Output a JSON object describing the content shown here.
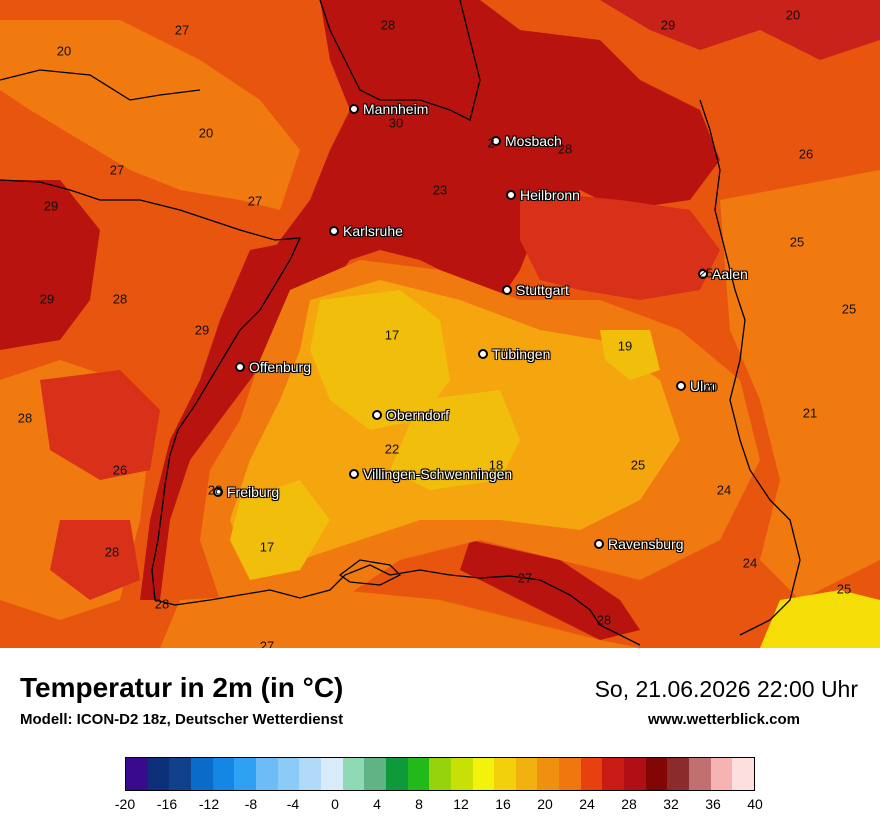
{
  "header": {
    "title": "Temperatur in 2m (in °C)",
    "subtitle": "Modell: ICON-D2 18z, Deutscher Wetterdienst",
    "datetime": "So, 21.06.2026 22:00 Uhr",
    "website": "www.wetterblick.com"
  },
  "colors": {
    "dark_red": "#b8130e",
    "red": "#d9301a",
    "red_orange": "#e8550f",
    "orange": "#f07a10",
    "light_orange": "#f5a50e",
    "yellow_orange": "#f2be0c",
    "yellow": "#f5dd07"
  },
  "cities": [
    {
      "name": "Mannheim"
    },
    {
      "name": "Mosbach"
    },
    {
      "name": "Heilbronn"
    },
    {
      "name": "Karlsruhe"
    },
    {
      "name": "Stuttgart"
    },
    {
      "name": "Aalen"
    },
    {
      "name": "Tübingen"
    },
    {
      "name": "Offenburg"
    },
    {
      "name": "Ulm"
    },
    {
      "name": "Oberndorf"
    },
    {
      "name": "Villingen-Schwenningen"
    },
    {
      "name": "Freiburg"
    },
    {
      "name": "Ravensburg"
    }
  ],
  "values": [
    "28",
    "27",
    "20",
    "29",
    "20",
    "20",
    "30",
    "2",
    "28",
    "26",
    "27",
    "23",
    "27",
    "29",
    "25",
    "25",
    "29",
    "28",
    "29",
    "17",
    "25",
    "19",
    "20",
    "28",
    "21",
    "26",
    "22",
    "18",
    "25",
    "28",
    "24",
    "28",
    "17",
    "24",
    "27",
    "25",
    "28",
    "28",
    "27"
  ],
  "legend": {
    "colors": [
      "#3a0a8c",
      "#0e2f7a",
      "#11418c",
      "#0a6bc8",
      "#1487e6",
      "#2ea1f5",
      "#6dbcf7",
      "#8ccaf8",
      "#b1daf9",
      "#d7ebfb",
      "#8fd9b5",
      "#5fb385",
      "#0e9a3a",
      "#22b91b",
      "#97d30c",
      "#c8e006",
      "#f2f20a",
      "#f2d10c",
      "#f2b10e",
      "#f0900f",
      "#f07610",
      "#e8410f",
      "#c81b14",
      "#b01015",
      "#820606",
      "#8a2c2c",
      "#c07070",
      "#f5b3b3",
      "#fddfe0"
    ],
    "ticks": [
      "-20",
      "-16",
      "-12",
      "-8",
      "-4",
      "0",
      "4",
      "8",
      "12",
      "16",
      "20",
      "24",
      "28",
      "32",
      "36",
      "40"
    ]
  }
}
